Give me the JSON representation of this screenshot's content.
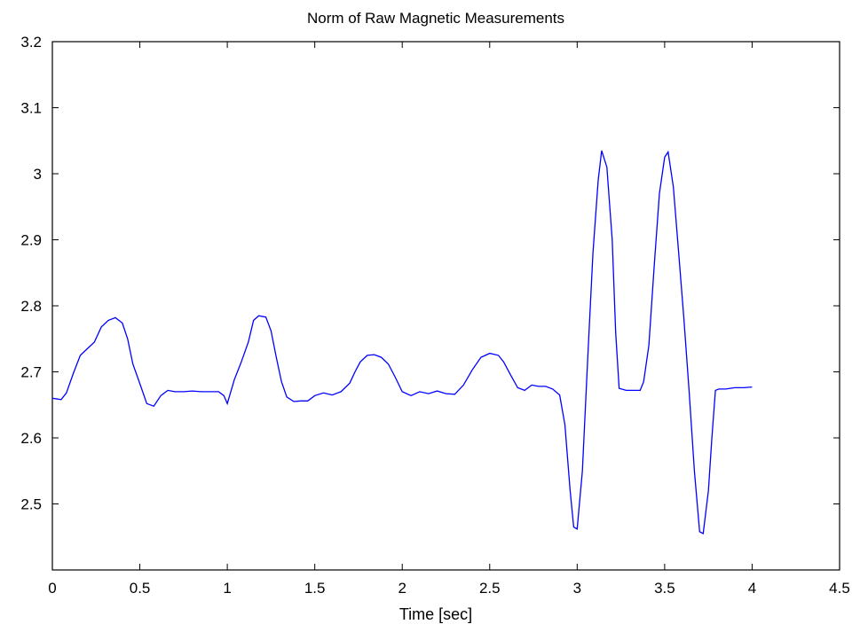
{
  "chart_data": {
    "type": "line",
    "title": "Norm of Raw Magnetic Measurements",
    "xlabel": "Time [sec]",
    "ylabel": "",
    "xlim": [
      0,
      4.5
    ],
    "ylim": [
      2.4,
      3.2
    ],
    "x_ticks": [
      "0",
      "0.5",
      "1",
      "1.5",
      "2",
      "2.5",
      "3",
      "3.5",
      "4",
      "4.5"
    ],
    "y_ticks": [
      "2.5",
      "2.6",
      "2.7",
      "2.8",
      "2.9",
      "3",
      "3.1",
      "3.2"
    ],
    "grid": false,
    "legend": "none",
    "line_color": "#0000ff",
    "series": [
      {
        "x": [
          0,
          0.05,
          0.08,
          0.12,
          0.16,
          0.2,
          0.24,
          0.28,
          0.32,
          0.36,
          0.4,
          0.43,
          0.46,
          0.5,
          0.54,
          0.58,
          0.62,
          0.66,
          0.7,
          0.75,
          0.8,
          0.85,
          0.9,
          0.95,
          0.98,
          1.0,
          1.04,
          1.08,
          1.12,
          1.15,
          1.18,
          1.22,
          1.25,
          1.28,
          1.31,
          1.34,
          1.38,
          1.42,
          1.46,
          1.5,
          1.55,
          1.6,
          1.65,
          1.7,
          1.73,
          1.76,
          1.8,
          1.84,
          1.88,
          1.92,
          1.96,
          2.0,
          2.05,
          2.1,
          2.15,
          2.2,
          2.25,
          2.3,
          2.35,
          2.4,
          2.45,
          2.5,
          2.55,
          2.58,
          2.62,
          2.66,
          2.7,
          2.74,
          2.78,
          2.82,
          2.86,
          2.9,
          2.93,
          2.96,
          2.98,
          3.0,
          3.03,
          3.06,
          3.09,
          3.12,
          3.14,
          3.17,
          3.2,
          3.22,
          3.24,
          3.28,
          3.32,
          3.36,
          3.38,
          3.41,
          3.44,
          3.47,
          3.5,
          3.52,
          3.55,
          3.58,
          3.61,
          3.64,
          3.67,
          3.7,
          3.72,
          3.75,
          3.77,
          3.79,
          3.81,
          3.85,
          3.9,
          3.95,
          4.0
        ],
        "y": [
          2.66,
          2.658,
          2.668,
          2.698,
          2.725,
          2.735,
          2.745,
          2.768,
          2.778,
          2.782,
          2.774,
          2.75,
          2.712,
          2.682,
          2.652,
          2.648,
          2.664,
          2.672,
          2.67,
          2.67,
          2.671,
          2.67,
          2.67,
          2.67,
          2.664,
          2.652,
          2.688,
          2.715,
          2.745,
          2.778,
          2.785,
          2.783,
          2.762,
          2.722,
          2.685,
          2.662,
          2.655,
          2.656,
          2.656,
          2.664,
          2.668,
          2.665,
          2.67,
          2.683,
          2.7,
          2.715,
          2.725,
          2.726,
          2.722,
          2.712,
          2.692,
          2.67,
          2.664,
          2.67,
          2.667,
          2.671,
          2.667,
          2.666,
          2.68,
          2.703,
          2.722,
          2.728,
          2.725,
          2.715,
          2.695,
          2.676,
          2.672,
          2.68,
          2.678,
          2.678,
          2.674,
          2.665,
          2.62,
          2.52,
          2.465,
          2.462,
          2.55,
          2.72,
          2.88,
          2.99,
          3.035,
          3.01,
          2.9,
          2.76,
          2.675,
          2.672,
          2.672,
          2.672,
          2.685,
          2.74,
          2.86,
          2.97,
          3.025,
          3.033,
          2.98,
          2.88,
          2.78,
          2.67,
          2.55,
          2.458,
          2.455,
          2.52,
          2.6,
          2.672,
          2.674,
          2.674,
          2.676,
          2.676,
          2.677
        ]
      }
    ]
  }
}
